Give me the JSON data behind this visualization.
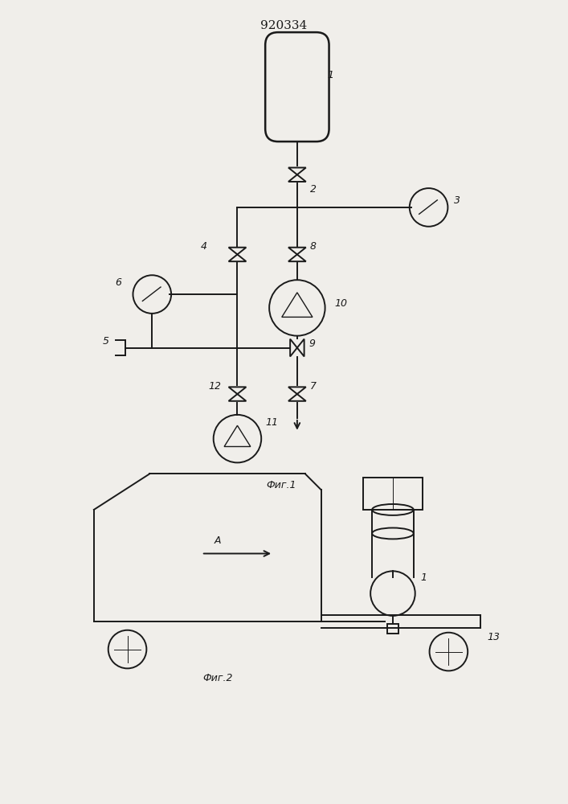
{
  "title": "920334",
  "fig1_label": "Фиг.1",
  "fig2_label": "Фиг.2",
  "bg_color": "#f0eeea",
  "line_color": "#1a1a1a",
  "lw": 1.4,
  "fs": 9
}
